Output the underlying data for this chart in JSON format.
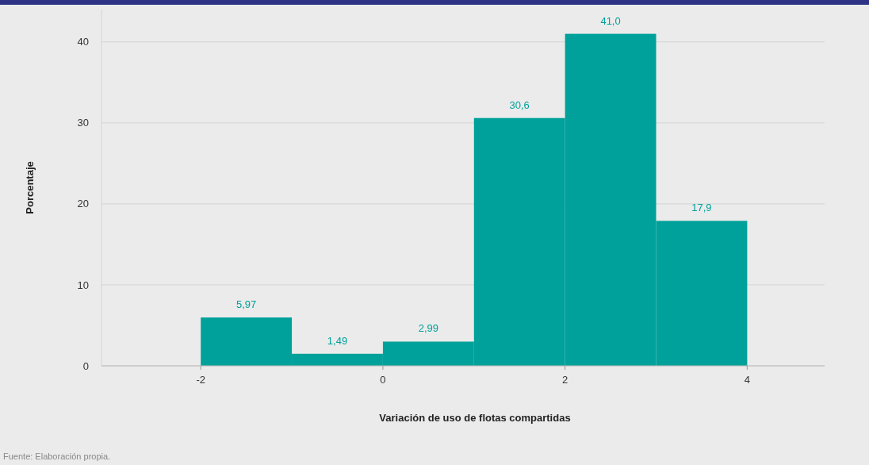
{
  "chart_data": {
    "type": "histogram",
    "xlabel": "Variación de uso de flotas compartidas",
    "ylabel": "Porcentaje",
    "bins": [
      -2,
      -1,
      0,
      1,
      2,
      3,
      4
    ],
    "values": [
      5.97,
      1.49,
      2.99,
      30.6,
      41.0,
      17.9
    ],
    "value_labels": [
      "5,97",
      "1,49",
      "2,99",
      "30,6",
      "41,0",
      "17,9"
    ],
    "color": "#00a19a",
    "xlim": [
      -3.09,
      4.85
    ],
    "xticks": [
      -2,
      0,
      2,
      4
    ],
    "ylim": [
      0,
      44
    ],
    "yticks": [
      0,
      10,
      20,
      30,
      40
    ],
    "grid": "y",
    "annotations": [
      "Fuente: Elaboración propia."
    ]
  }
}
